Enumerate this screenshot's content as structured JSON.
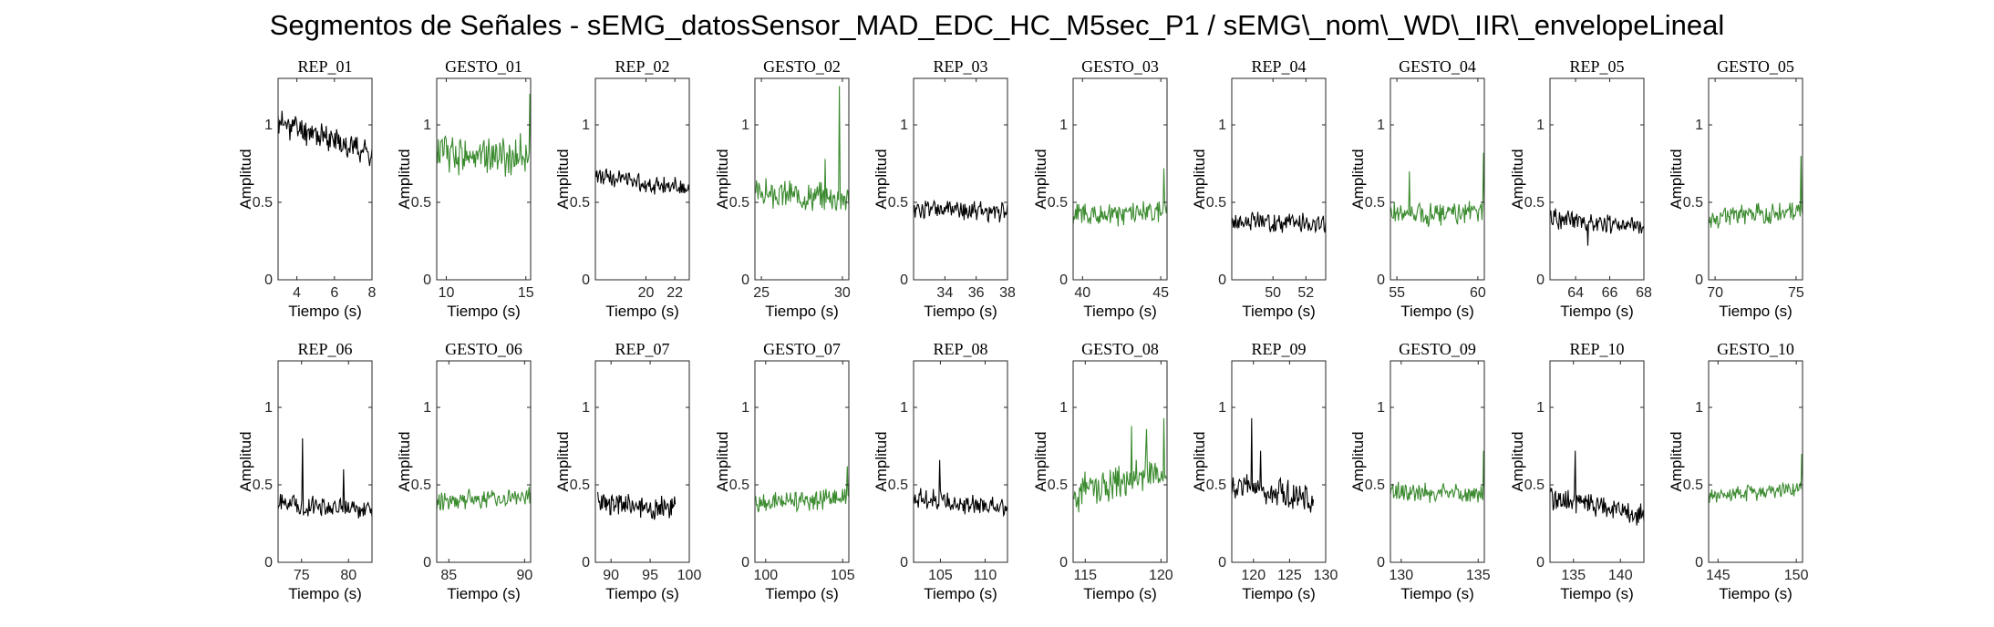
{
  "figure": {
    "title": "Segmentos de Señales - sEMG_datosSensor_MAD_EDC_HC_M5sec_P1 / sEMG\\_nom\\_WD\\_IIR\\_envelopeLineal"
  },
  "colors": {
    "rep": "#000000",
    "gesto": "#3a8a2e",
    "axes": "#262626"
  },
  "chart_data": [
    {
      "type": "line",
      "title": "REP_01",
      "row": 0,
      "col": 0,
      "color": "rep",
      "xlim": [
        3,
        8
      ],
      "xticks": [
        4,
        6,
        8
      ],
      "ylim": [
        0,
        1.3
      ],
      "yticks": [
        0,
        0.5,
        1
      ],
      "xlabel": "Tiempo (s)",
      "ylabel": "Amplitud",
      "base": 1.02,
      "end": 0.82,
      "noise": 0.07,
      "spikes": [],
      "seed": 11
    },
    {
      "type": "line",
      "title": "GESTO_01",
      "row": 0,
      "col": 1,
      "color": "gesto",
      "xlim": [
        9.4,
        15.3
      ],
      "xticks": [
        10,
        15
      ],
      "ylim": [
        0,
        1.3
      ],
      "yticks": [
        0,
        0.5,
        1
      ],
      "xlabel": "Tiempo (s)",
      "ylabel": "Amplitud",
      "base": 0.82,
      "end": 0.8,
      "noise": 0.1,
      "spikes": [
        [
          0.99,
          1.2
        ]
      ],
      "seed": 12
    },
    {
      "type": "line",
      "title": "REP_02",
      "row": 0,
      "col": 2,
      "color": "rep",
      "xlim": [
        16.5,
        23
      ],
      "xticks": [
        20,
        22
      ],
      "ylim": [
        0,
        1.3
      ],
      "yticks": [
        0,
        0.5,
        1
      ],
      "xlabel": "Tiempo (s)",
      "ylabel": "Amplitud",
      "base": 0.68,
      "end": 0.58,
      "noise": 0.05,
      "spikes": [],
      "seed": 13
    },
    {
      "type": "line",
      "title": "GESTO_02",
      "row": 0,
      "col": 3,
      "color": "gesto",
      "xlim": [
        24.6,
        30.4
      ],
      "xticks": [
        25,
        30
      ],
      "ylim": [
        0,
        1.3
      ],
      "yticks": [
        0,
        0.5,
        1
      ],
      "xlabel": "Tiempo (s)",
      "ylabel": "Amplitud",
      "base": 0.56,
      "end": 0.52,
      "noise": 0.07,
      "spikes": [
        [
          0.9,
          1.25
        ],
        [
          0.75,
          0.78
        ]
      ],
      "seed": 14
    },
    {
      "type": "line",
      "title": "REP_03",
      "row": 0,
      "col": 4,
      "color": "rep",
      "xlim": [
        32,
        38
      ],
      "xticks": [
        34,
        36,
        38
      ],
      "ylim": [
        0,
        1.3
      ],
      "yticks": [
        0,
        0.5,
        1
      ],
      "xlabel": "Tiempo (s)",
      "ylabel": "Amplitud",
      "base": 0.46,
      "end": 0.44,
      "noise": 0.05,
      "spikes": [],
      "seed": 15
    },
    {
      "type": "line",
      "title": "GESTO_03",
      "row": 0,
      "col": 5,
      "color": "gesto",
      "xlim": [
        39.4,
        45.4
      ],
      "xticks": [
        40,
        45
      ],
      "ylim": [
        0,
        1.3
      ],
      "yticks": [
        0,
        0.5,
        1
      ],
      "xlabel": "Tiempo (s)",
      "ylabel": "Amplitud",
      "base": 0.42,
      "end": 0.44,
      "noise": 0.06,
      "spikes": [
        [
          0.97,
          0.72
        ]
      ],
      "seed": 16
    },
    {
      "type": "line",
      "title": "REP_04",
      "row": 0,
      "col": 6,
      "color": "rep",
      "xlim": [
        47.5,
        53.2
      ],
      "xticks": [
        50,
        52
      ],
      "ylim": [
        0,
        1.3
      ],
      "yticks": [
        0,
        0.5,
        1
      ],
      "xlabel": "Tiempo (s)",
      "ylabel": "Amplitud",
      "base": 0.38,
      "end": 0.36,
      "noise": 0.05,
      "spikes": [],
      "seed": 17
    },
    {
      "type": "line",
      "title": "GESTO_04",
      "row": 0,
      "col": 7,
      "color": "gesto",
      "xlim": [
        54.6,
        60.4
      ],
      "xticks": [
        55,
        60
      ],
      "ylim": [
        0,
        1.3
      ],
      "yticks": [
        0,
        0.5,
        1
      ],
      "xlabel": "Tiempo (s)",
      "ylabel": "Amplitud",
      "base": 0.42,
      "end": 0.44,
      "noise": 0.06,
      "spikes": [
        [
          0.2,
          0.7
        ],
        [
          0.99,
          0.82
        ]
      ],
      "seed": 18
    },
    {
      "type": "line",
      "title": "REP_05",
      "row": 0,
      "col": 8,
      "color": "rep",
      "xlim": [
        62.5,
        68
      ],
      "xticks": [
        64,
        66,
        68
      ],
      "ylim": [
        0,
        1.3
      ],
      "yticks": [
        0,
        0.5,
        1
      ],
      "xlabel": "Tiempo (s)",
      "ylabel": "Amplitud",
      "base": 0.4,
      "end": 0.34,
      "noise": 0.05,
      "spikes": [
        [
          0.4,
          0.22
        ]
      ],
      "seed": 19
    },
    {
      "type": "line",
      "title": "GESTO_05",
      "row": 0,
      "col": 9,
      "color": "gesto",
      "xlim": [
        69.6,
        75.4
      ],
      "xticks": [
        70,
        75
      ],
      "ylim": [
        0,
        1.3
      ],
      "yticks": [
        0,
        0.5,
        1
      ],
      "xlabel": "Tiempo (s)",
      "ylabel": "Amplitud",
      "base": 0.4,
      "end": 0.45,
      "noise": 0.05,
      "spikes": [
        [
          0.98,
          0.8
        ]
      ],
      "seed": 20
    },
    {
      "type": "line",
      "title": "REP_06",
      "row": 1,
      "col": 0,
      "color": "rep",
      "xlim": [
        72.5,
        82.5
      ],
      "xticks": [
        75,
        80
      ],
      "ylim": [
        0,
        1.3
      ],
      "yticks": [
        0,
        0.5,
        1
      ],
      "xlabel": "Tiempo (s)",
      "ylabel": "Amplitud",
      "base": 0.38,
      "end": 0.34,
      "noise": 0.05,
      "spikes": [
        [
          0.26,
          0.8
        ],
        [
          0.7,
          0.6
        ]
      ],
      "seed": 21
    },
    {
      "type": "line",
      "title": "GESTO_06",
      "row": 1,
      "col": 1,
      "color": "gesto",
      "xlim": [
        84.2,
        90.4
      ],
      "xticks": [
        85,
        90
      ],
      "ylim": [
        0,
        1.3
      ],
      "yticks": [
        0,
        0.5,
        1
      ],
      "xlabel": "Tiempo (s)",
      "ylabel": "Amplitud",
      "base": 0.4,
      "end": 0.42,
      "noise": 0.05,
      "spikes": [],
      "seed": 22
    },
    {
      "type": "line",
      "title": "REP_07",
      "row": 1,
      "col": 2,
      "color": "rep",
      "xlim": [
        88,
        100
      ],
      "xticks": [
        90,
        95,
        100
      ],
      "ylim": [
        0,
        1.3
      ],
      "yticks": [
        0,
        0.5,
        1
      ],
      "dataX": [
        88.3,
        98.2
      ],
      "xlabel": "Tiempo (s)",
      "ylabel": "Amplitud",
      "base": 0.38,
      "end": 0.35,
      "noise": 0.06,
      "spikes": [],
      "seed": 23
    },
    {
      "type": "line",
      "title": "GESTO_07",
      "row": 1,
      "col": 3,
      "color": "gesto",
      "xlim": [
        99.3,
        105.4
      ],
      "xticks": [
        100,
        105
      ],
      "ylim": [
        0,
        1.3
      ],
      "yticks": [
        0,
        0.5,
        1
      ],
      "xlabel": "Tiempo (s)",
      "ylabel": "Amplitud",
      "base": 0.38,
      "end": 0.42,
      "noise": 0.05,
      "spikes": [
        [
          0.98,
          0.62
        ]
      ],
      "seed": 24
    },
    {
      "type": "line",
      "title": "REP_08",
      "row": 1,
      "col": 4,
      "color": "rep",
      "xlim": [
        102,
        112.5
      ],
      "xticks": [
        105,
        110
      ],
      "ylim": [
        0,
        1.3
      ],
      "yticks": [
        0,
        0.5,
        1
      ],
      "xlabel": "Tiempo (s)",
      "ylabel": "Amplitud",
      "base": 0.42,
      "end": 0.34,
      "noise": 0.05,
      "spikes": [
        [
          0.28,
          0.66
        ]
      ],
      "seed": 25
    },
    {
      "type": "line",
      "title": "GESTO_08",
      "row": 1,
      "col": 5,
      "color": "gesto",
      "xlim": [
        114.2,
        120.4
      ],
      "xticks": [
        115,
        120
      ],
      "ylim": [
        0,
        1.3
      ],
      "yticks": [
        0,
        0.5,
        1
      ],
      "xlabel": "Tiempo (s)",
      "ylabel": "Amplitud",
      "base": 0.45,
      "end": 0.6,
      "noise": 0.1,
      "spikes": [
        [
          0.62,
          0.88
        ],
        [
          0.78,
          0.86
        ],
        [
          0.97,
          0.93
        ]
      ],
      "seed": 26
    },
    {
      "type": "line",
      "title": "REP_09",
      "row": 1,
      "col": 6,
      "color": "rep",
      "xlim": [
        117,
        130
      ],
      "xticks": [
        120,
        125,
        130
      ],
      "ylim": [
        0,
        1.3
      ],
      "yticks": [
        0,
        0.5,
        1
      ],
      "dataX": [
        117,
        128.3
      ],
      "xlabel": "Tiempo (s)",
      "ylabel": "Amplitud",
      "base": 0.5,
      "end": 0.4,
      "noise": 0.07,
      "spikes": [
        [
          0.24,
          0.93
        ],
        [
          0.35,
          0.72
        ]
      ],
      "seed": 27
    },
    {
      "type": "line",
      "title": "GESTO_09",
      "row": 1,
      "col": 7,
      "color": "gesto",
      "xlim": [
        129.3,
        135.4
      ],
      "xticks": [
        130,
        135
      ],
      "ylim": [
        0,
        1.3
      ],
      "yticks": [
        0,
        0.5,
        1
      ],
      "xlabel": "Tiempo (s)",
      "ylabel": "Amplitud",
      "base": 0.46,
      "end": 0.44,
      "noise": 0.05,
      "spikes": [
        [
          0.99,
          0.72
        ]
      ],
      "seed": 28
    },
    {
      "type": "line",
      "title": "REP_10",
      "row": 1,
      "col": 8,
      "color": "rep",
      "xlim": [
        132.5,
        142.5
      ],
      "xticks": [
        135,
        140
      ],
      "ylim": [
        0,
        1.3
      ],
      "yticks": [
        0,
        0.5,
        1
      ],
      "xlabel": "Tiempo (s)",
      "ylabel": "Amplitud",
      "base": 0.42,
      "end": 0.3,
      "noise": 0.06,
      "spikes": [
        [
          0.27,
          0.72
        ]
      ],
      "seed": 29
    },
    {
      "type": "line",
      "title": "GESTO_10",
      "row": 1,
      "col": 9,
      "color": "gesto",
      "xlim": [
        144.4,
        150.4
      ],
      "xticks": [
        145,
        150
      ],
      "ylim": [
        0,
        1.3
      ],
      "yticks": [
        0,
        0.5,
        1
      ],
      "xlabel": "Tiempo (s)",
      "ylabel": "Amplitud",
      "base": 0.42,
      "end": 0.48,
      "noise": 0.04,
      "spikes": [
        [
          0.99,
          0.7
        ]
      ],
      "seed": 30
    }
  ]
}
